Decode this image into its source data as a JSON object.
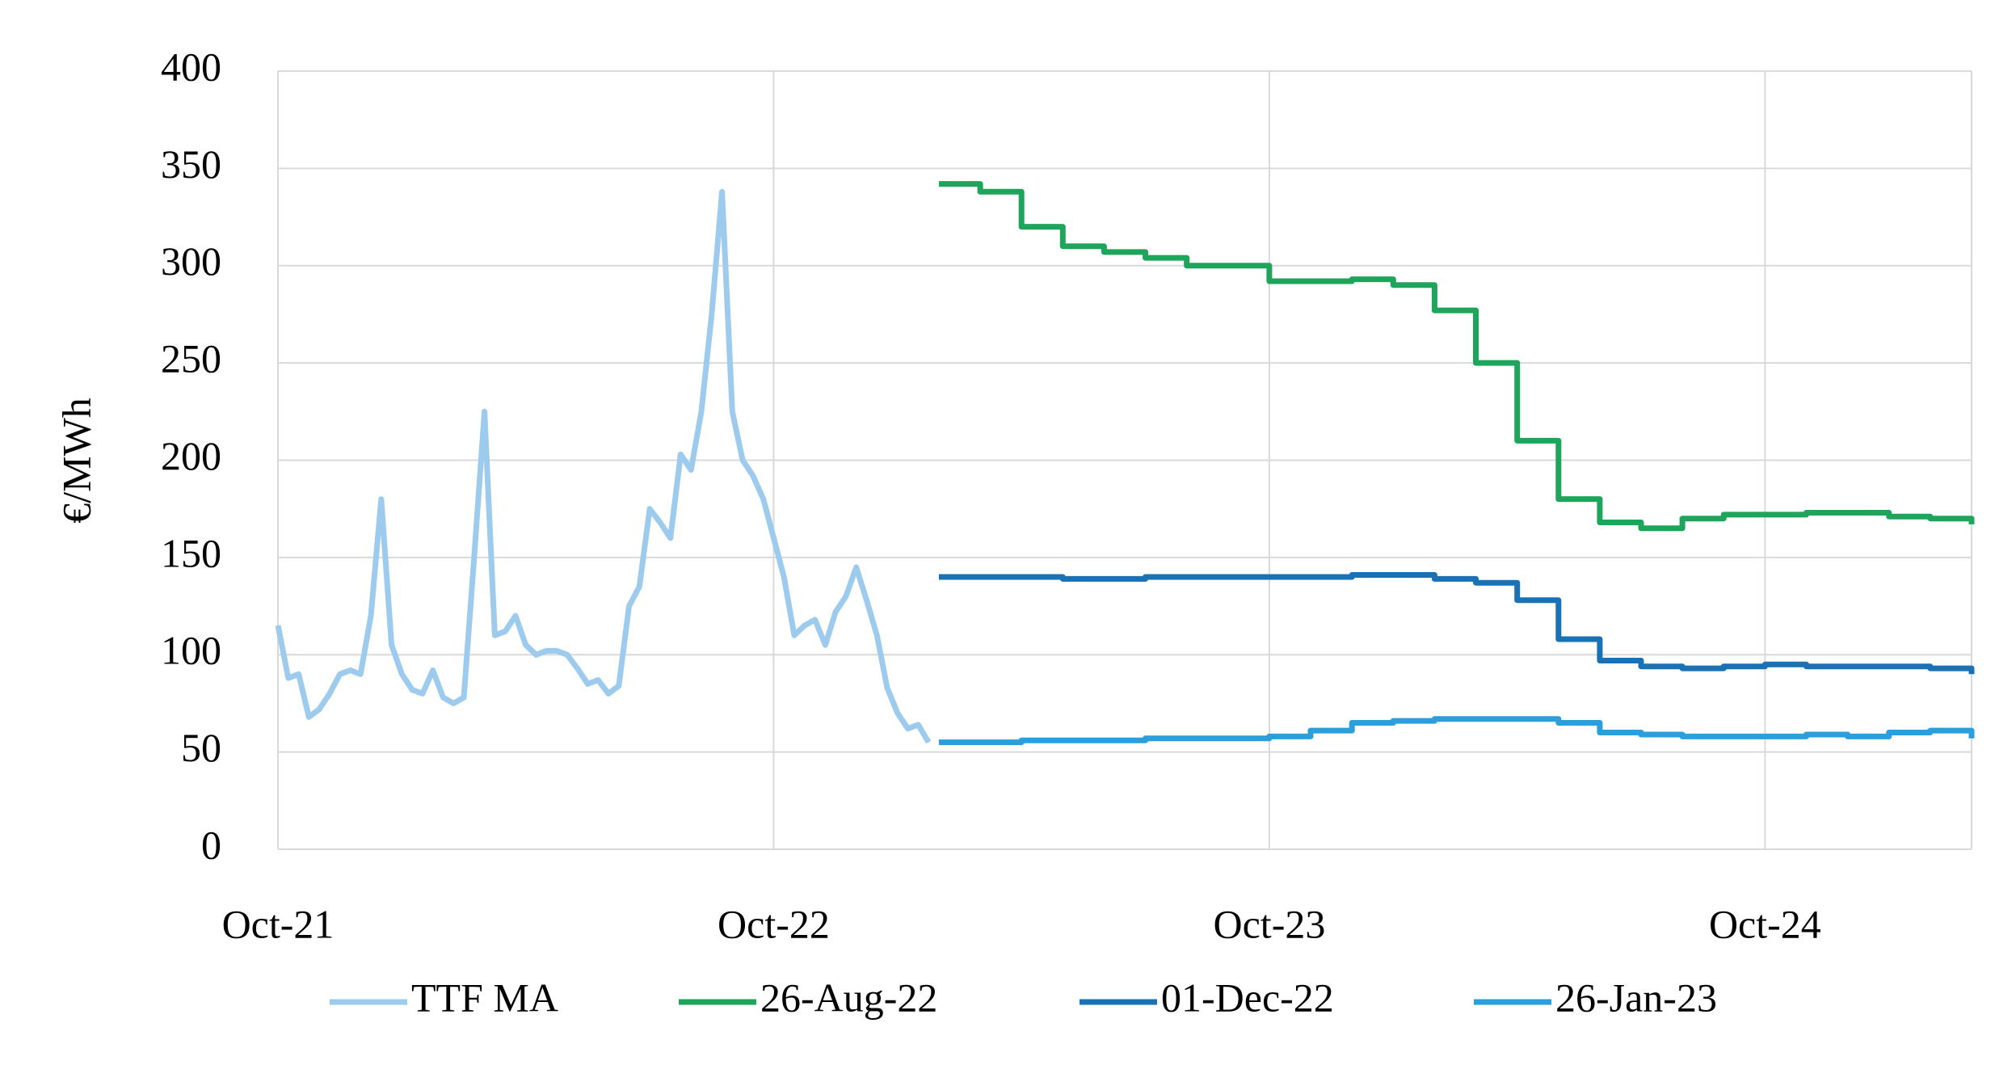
{
  "chart_data": {
    "type": "line",
    "y_label": "€/MWh",
    "xlim": [
      0,
      41
    ],
    "xticks": [
      {
        "value": 0,
        "label": "Oct-21"
      },
      {
        "value": 12,
        "label": "Oct-22"
      },
      {
        "value": 24,
        "label": "Oct-23"
      },
      {
        "value": 36,
        "label": "Oct-24"
      }
    ],
    "ylim": [
      0,
      400
    ],
    "yticks": [
      0,
      50,
      100,
      150,
      200,
      250,
      300,
      350,
      400
    ],
    "grid": true,
    "series": [
      {
        "name": "TTF MA",
        "color": "#9ccbee",
        "step": false,
        "x": [
          0,
          0.25,
          0.5,
          0.75,
          1,
          1.25,
          1.5,
          1.75,
          2,
          2.25,
          2.5,
          2.75,
          3,
          3.25,
          3.5,
          3.75,
          4,
          4.25,
          4.5,
          4.75,
          5,
          5.25,
          5.5,
          5.75,
          6,
          6.25,
          6.5,
          6.75,
          7,
          7.25,
          7.5,
          7.75,
          8,
          8.25,
          8.5,
          8.75,
          9,
          9.25,
          9.5,
          9.75,
          10,
          10.25,
          10.5,
          10.75,
          11,
          11.25,
          11.5,
          11.75,
          12,
          12.25,
          12.5,
          12.75,
          13,
          13.25,
          13.5,
          13.75,
          14,
          14.25,
          14.5,
          14.75,
          15,
          15.25,
          15.5,
          15.75
        ],
        "values": [
          115,
          88,
          90,
          68,
          72,
          80,
          90,
          92,
          90,
          120,
          180,
          105,
          90,
          82,
          80,
          92,
          78,
          75,
          78,
          150,
          225,
          110,
          112,
          120,
          105,
          100,
          102,
          102,
          100,
          93,
          85,
          87,
          80,
          84,
          125,
          135,
          175,
          168,
          160,
          203,
          195,
          225,
          275,
          338,
          225,
          200,
          192,
          180,
          160,
          140,
          110,
          115,
          118,
          105,
          122,
          130,
          145,
          128,
          110,
          83,
          70,
          62,
          64,
          55
        ]
      },
      {
        "name": "26-Aug-22",
        "color": "#1ea55b",
        "step": true,
        "x": [
          16,
          17,
          18,
          19,
          20,
          21,
          22,
          23,
          24,
          25,
          26,
          27,
          28,
          29,
          30,
          31,
          32,
          33,
          34,
          35,
          36,
          37,
          38,
          39,
          40,
          41
        ],
        "values": [
          342,
          338,
          320,
          310,
          307,
          304,
          300,
          300,
          292,
          292,
          293,
          290,
          277,
          250,
          210,
          180,
          168,
          165,
          170,
          172,
          172,
          173,
          173,
          171,
          170,
          167
        ]
      },
      {
        "name": "01-Dec-22",
        "color": "#1a72b4",
        "step": true,
        "x": [
          16,
          17,
          18,
          19,
          20,
          21,
          22,
          23,
          24,
          25,
          26,
          27,
          28,
          29,
          30,
          31,
          32,
          33,
          34,
          35,
          36,
          37,
          38,
          39,
          40,
          41
        ],
        "values": [
          140,
          140,
          140,
          139,
          139,
          140,
          140,
          140,
          140,
          140,
          141,
          141,
          139,
          137,
          128,
          108,
          97,
          94,
          93,
          94,
          95,
          94,
          94,
          94,
          93,
          90
        ]
      },
      {
        "name": "26-Jan-23",
        "color": "#2b9fdc",
        "step": true,
        "x": [
          16,
          17,
          18,
          19,
          20,
          21,
          22,
          23,
          24,
          25,
          26,
          27,
          28,
          29,
          30,
          31,
          32,
          33,
          34,
          35,
          36,
          37,
          38,
          39,
          40,
          41
        ],
        "values": [
          55,
          55,
          56,
          56,
          56,
          57,
          57,
          57,
          58,
          61,
          65,
          66,
          67,
          67,
          67,
          65,
          60,
          59,
          58,
          58,
          58,
          59,
          58,
          60,
          61,
          57
        ]
      }
    ]
  }
}
